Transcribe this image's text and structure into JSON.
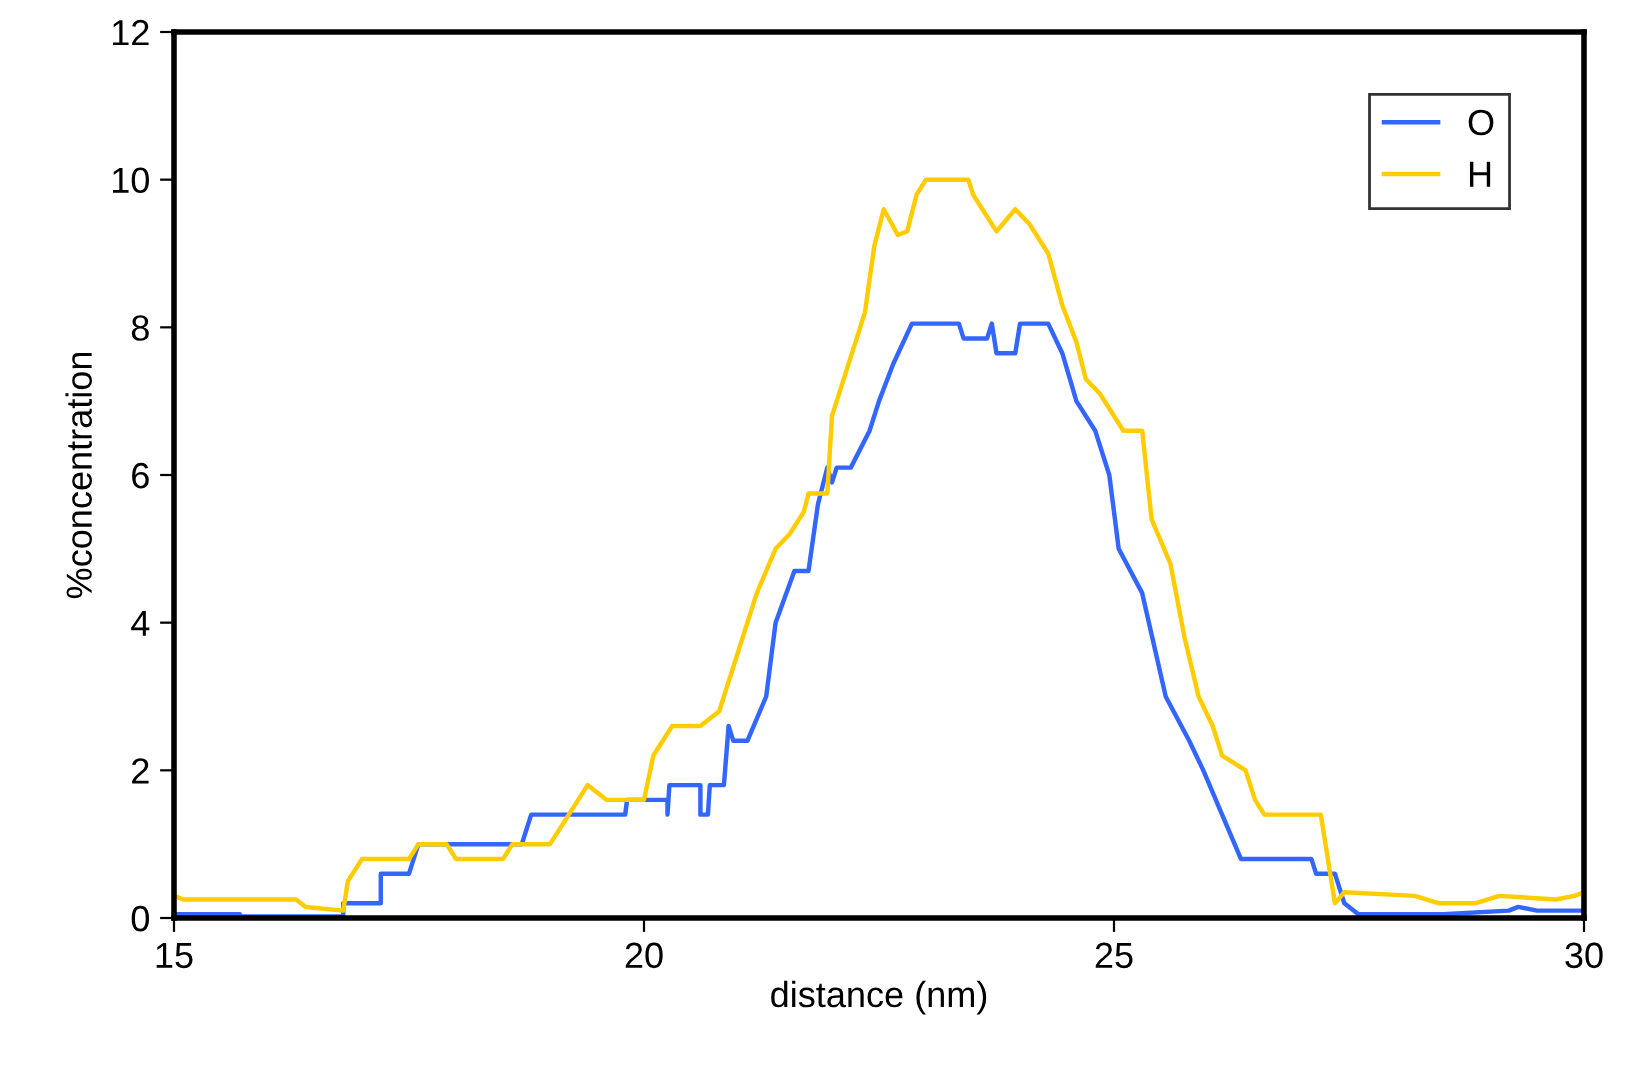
{
  "chart_data": {
    "type": "line",
    "xlabel": "distance (nm)",
    "ylabel": "%concentration",
    "xlim": [
      15,
      30
    ],
    "xticks": [
      15,
      20,
      25,
      30
    ],
    "ylim": [
      0,
      12
    ],
    "yticks": [
      0,
      2,
      4,
      6,
      8,
      10,
      12
    ],
    "grid": false,
    "legend": "top right",
    "line_style": "solid",
    "marker": "none",
    "series": [
      {
        "name": "O",
        "color": "#3366ff",
        "x": [
          15,
          15.7,
          15.7,
          16.8,
          16.8,
          17.2,
          17.2,
          17.5,
          17.6,
          18.7,
          18.8,
          19.8,
          19.82,
          20.25,
          20.25,
          20.27,
          20.6,
          20.6,
          20.68,
          20.7,
          20.85,
          20.9,
          20.95,
          21.1,
          21.3,
          21.4,
          21.6,
          21.75,
          21.85,
          21.95,
          22.0,
          22.05,
          22.2,
          22.4,
          22.5,
          22.65,
          22.85,
          23.35,
          23.4,
          23.65,
          23.7,
          23.75,
          23.95,
          24.0,
          24.3,
          24.45,
          24.6,
          24.8,
          24.95,
          25.05,
          25.3,
          25.55,
          25.8,
          25.95,
          26.15,
          26.35,
          27.1,
          27.15,
          27.35,
          27.45,
          27.6,
          28.5,
          29.2,
          29.3,
          29.5,
          30
        ],
        "values": [
          0.05,
          0.05,
          0.02,
          0.02,
          0.2,
          0.2,
          0.6,
          0.6,
          1.0,
          1.0,
          1.4,
          1.4,
          1.6,
          1.6,
          1.4,
          1.8,
          1.8,
          1.4,
          1.4,
          1.8,
          1.8,
          2.6,
          2.4,
          2.4,
          3.0,
          4.0,
          4.7,
          4.7,
          5.6,
          6.1,
          5.9,
          6.1,
          6.1,
          6.6,
          7.0,
          7.5,
          8.05,
          8.05,
          7.85,
          7.85,
          8.05,
          7.65,
          7.65,
          8.05,
          8.05,
          7.65,
          7.0,
          6.6,
          6.0,
          5.0,
          4.4,
          3.0,
          2.4,
          2.0,
          1.4,
          0.8,
          0.8,
          0.6,
          0.6,
          0.2,
          0.05,
          0.05,
          0.1,
          0.15,
          0.1,
          0.1
        ]
      },
      {
        "name": "H",
        "color": "#ffcc00",
        "x": [
          15,
          15.1,
          16.3,
          16.4,
          16.8,
          16.85,
          17.0,
          17.5,
          17.6,
          17.9,
          18.0,
          18.5,
          18.6,
          19.0,
          19.2,
          19.4,
          19.6,
          20.0,
          20.1,
          20.3,
          20.6,
          20.8,
          21.0,
          21.2,
          21.4,
          21.55,
          21.7,
          21.75,
          21.95,
          22.0,
          22.15,
          22.35,
          22.45,
          22.55,
          22.7,
          22.8,
          22.9,
          23.0,
          23.45,
          23.5,
          23.75,
          23.95,
          24.1,
          24.3,
          24.45,
          24.6,
          24.7,
          24.85,
          25.1,
          25.3,
          25.4,
          25.6,
          25.75,
          25.9,
          26.05,
          26.15,
          26.4,
          26.5,
          26.6,
          27.2,
          27.25,
          27.35,
          27.45,
          28.2,
          28.45,
          28.85,
          29.1,
          29.7,
          29.9,
          30
        ],
        "values": [
          0.3,
          0.25,
          0.25,
          0.15,
          0.1,
          0.5,
          0.8,
          0.8,
          1.0,
          1.0,
          0.8,
          0.8,
          1.0,
          1.0,
          1.4,
          1.8,
          1.6,
          1.6,
          2.2,
          2.6,
          2.6,
          2.8,
          3.6,
          4.4,
          5.0,
          5.2,
          5.5,
          5.75,
          5.75,
          6.8,
          7.4,
          8.2,
          9.1,
          9.6,
          9.25,
          9.3,
          9.8,
          10.0,
          10.0,
          9.8,
          9.3,
          9.6,
          9.4,
          9.0,
          8.3,
          7.8,
          7.3,
          7.1,
          6.6,
          6.6,
          5.4,
          4.8,
          3.8,
          3.0,
          2.6,
          2.2,
          2.0,
          1.6,
          1.4,
          1.4,
          1.0,
          0.2,
          0.35,
          0.3,
          0.2,
          0.2,
          0.3,
          0.25,
          0.3,
          0.35
        ]
      }
    ]
  }
}
